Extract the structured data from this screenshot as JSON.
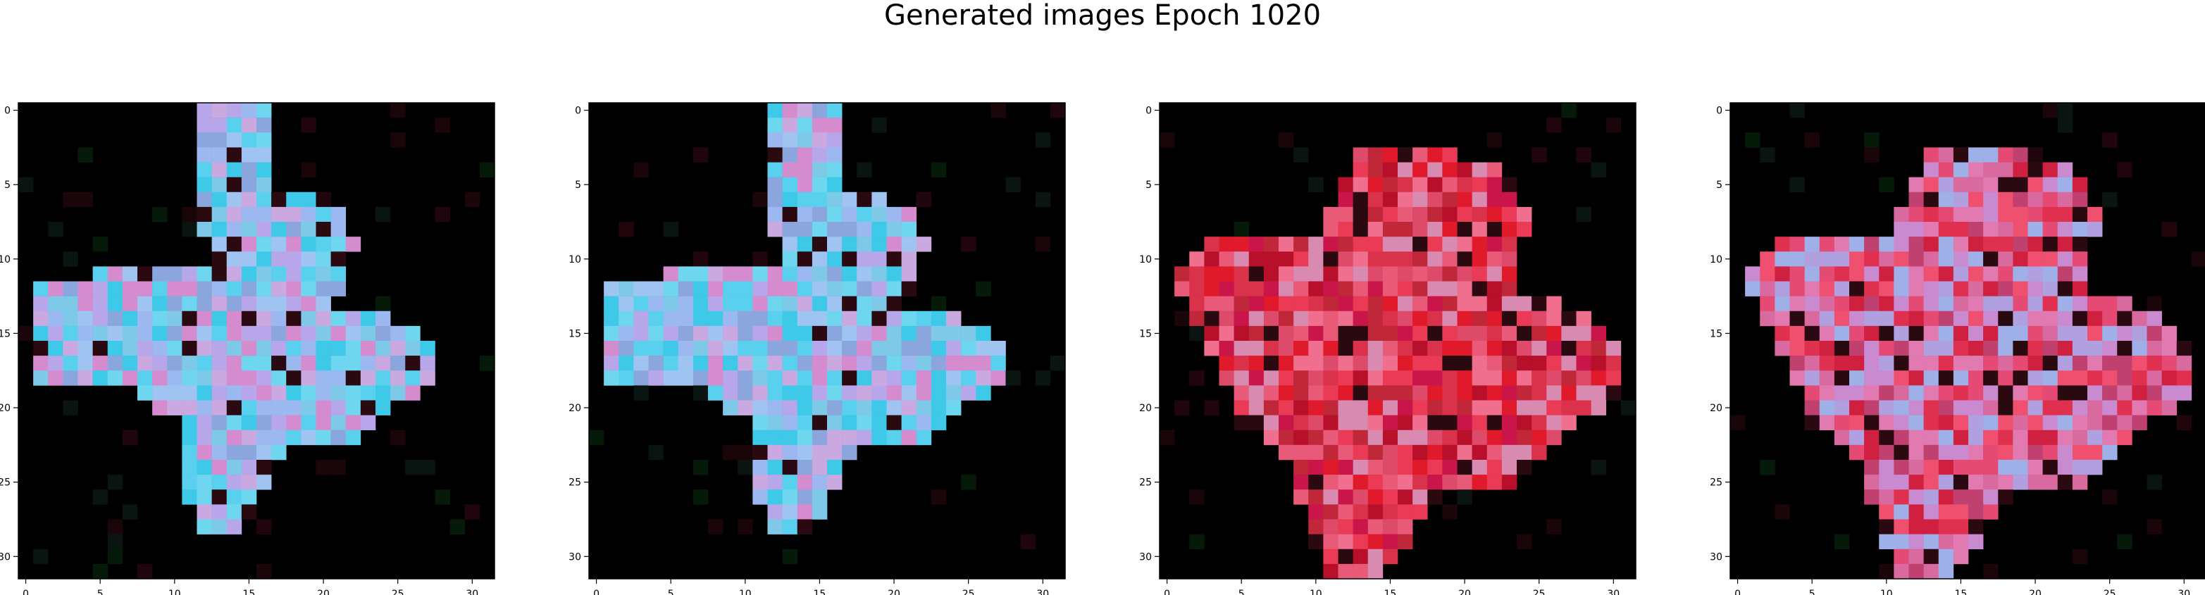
{
  "figure": {
    "suptitle": "Generated images Epoch 1020"
  },
  "chart_data": [
    {
      "type": "heatmap",
      "description_note": "",
      "title": "",
      "xlabel": "",
      "ylabel": "",
      "grid": false,
      "xlim": [
        -0.5,
        31.5
      ],
      "ylim": [
        31.5,
        -0.5
      ],
      "x_ticks": [
        0,
        5,
        10,
        15,
        20,
        25,
        30
      ],
      "y_ticks": [
        0,
        5,
        10,
        15,
        20,
        25,
        30
      ],
      "palette": "cyan-lavender",
      "seed": 11
    },
    {
      "type": "heatmap",
      "title": "",
      "xlabel": "",
      "ylabel": "",
      "grid": false,
      "xlim": [
        -0.5,
        31.5
      ],
      "ylim": [
        31.5,
        -0.5
      ],
      "x_ticks": [
        0,
        5,
        10,
        15,
        20,
        25,
        30
      ],
      "y_ticks": [
        0,
        5,
        10,
        15,
        20,
        25,
        30
      ],
      "palette": "cyan-lavender",
      "seed": 12
    },
    {
      "type": "heatmap",
      "title": "",
      "xlabel": "",
      "ylabel": "",
      "grid": false,
      "xlim": [
        -0.5,
        31.5
      ],
      "ylim": [
        31.5,
        -0.5
      ],
      "x_ticks": [
        0,
        5,
        10,
        15,
        20,
        25,
        30
      ],
      "y_ticks": [
        0,
        5,
        10,
        15,
        20,
        25,
        30
      ],
      "palette": "red-pink",
      "seed": 21
    },
    {
      "type": "heatmap",
      "title": "",
      "xlabel": "",
      "ylabel": "",
      "grid": false,
      "xlim": [
        -0.5,
        31.5
      ],
      "ylim": [
        31.5,
        -0.5
      ],
      "x_ticks": [
        0,
        5,
        10,
        15,
        20,
        25,
        30
      ],
      "y_ticks": [
        0,
        5,
        10,
        15,
        20,
        25,
        30
      ],
      "palette": "pink-lavender",
      "seed": 31
    }
  ]
}
